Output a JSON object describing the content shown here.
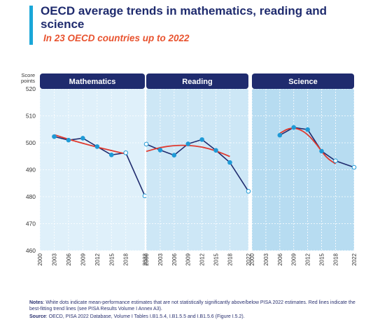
{
  "header": {
    "title": "OECD average trends in mathematics, reading and science",
    "subtitle": "In 23 OECD countries up to 2022"
  },
  "colors": {
    "accent": "#1aa7d8",
    "panel_header": "#1f2b6e",
    "panel_math_bg": "#dff0fa",
    "panel_reading_bg": "#cde7f6",
    "panel_science_bg": "#b7dcf1",
    "series_line": "#1f2b6e",
    "point_fill": "#1f9ad6",
    "trend_line": "#e03a2f"
  },
  "chart_data": {
    "type": "line",
    "y_axis_label": "Score points",
    "ylim": [
      460,
      520
    ],
    "yticks": [
      460,
      470,
      480,
      490,
      500,
      510,
      520
    ],
    "xticks": [
      "2000",
      "2003",
      "2006",
      "2009",
      "2012",
      "2015",
      "2018",
      "2022"
    ],
    "grid": true,
    "panels": [
      {
        "name": "Mathematics",
        "x": [
          2003,
          2006,
          2009,
          2012,
          2015,
          2018,
          2022
        ],
        "values": [
          502.3,
          501.0,
          501.7,
          498.6,
          495.5,
          496.3,
          480.3
        ],
        "white_points": [
          false,
          false,
          false,
          false,
          false,
          true,
          true
        ],
        "trend": [
          [
            2003,
            503.0
          ],
          [
            2006,
            501.3
          ],
          [
            2009,
            499.8
          ],
          [
            2012,
            498.4
          ],
          [
            2015,
            497.1
          ],
          [
            2018,
            495.9
          ]
        ]
      },
      {
        "name": "Reading",
        "x": [
          2000,
          2003,
          2006,
          2009,
          2012,
          2015,
          2018,
          2022
        ],
        "values": [
          499.5,
          497.3,
          495.4,
          499.6,
          501.2,
          497.2,
          492.7,
          482.0
        ],
        "white_points": [
          true,
          false,
          false,
          false,
          false,
          false,
          false,
          true
        ],
        "trend": [
          [
            2000,
            496.8
          ],
          [
            2003,
            498.3
          ],
          [
            2006,
            499.0
          ],
          [
            2009,
            499.1
          ],
          [
            2012,
            498.5
          ],
          [
            2015,
            497.1
          ],
          [
            2018,
            494.9
          ]
        ]
      },
      {
        "name": "Science",
        "x": [
          2006,
          2009,
          2012,
          2015,
          2018,
          2022
        ],
        "values": [
          502.8,
          505.7,
          504.9,
          496.9,
          493.3,
          490.9
        ],
        "white_points": [
          false,
          false,
          false,
          false,
          true,
          true
        ],
        "trend": [
          [
            2006,
            503.5
          ],
          [
            2008,
            505.5
          ],
          [
            2010,
            505.3
          ],
          [
            2012,
            503.2
          ],
          [
            2014,
            499.3
          ],
          [
            2016,
            494.5
          ],
          [
            2018,
            492.2
          ]
        ]
      }
    ]
  },
  "footer": {
    "notes_label": "Notes",
    "notes_text": ": White dots indicate mean-performance estimates that are not statistically significantly above/below PISA 2022 estimates. Red lines indicate the best-fitting trend lines (see PISA Results Volume I Annex A3).",
    "source_label": "Source",
    "source_text": ": OECD, PISA 2022 Database, Volume I Tables I.B1.5.4, I.B1.5.5 and I.B1.5.6 (Figure I.5.2)."
  }
}
